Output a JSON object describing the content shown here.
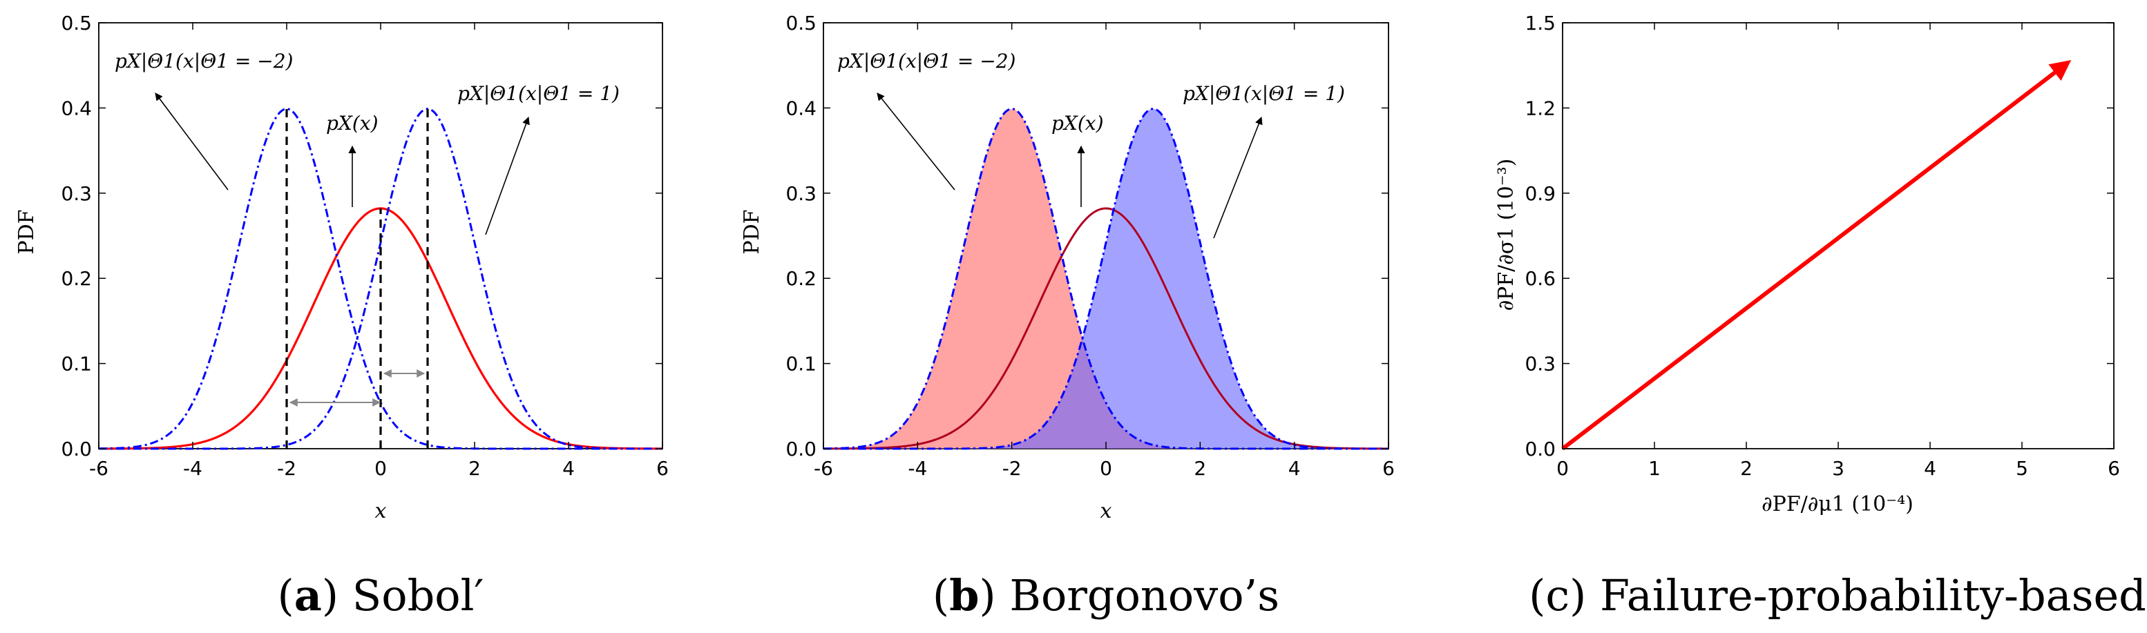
{
  "chart_data": [
    {
      "type": "line",
      "panel": "a",
      "caption_letter": "a",
      "caption_text": "Sobol′",
      "xlabel": "x",
      "ylabel": "PDF",
      "xlim": [
        -6,
        6
      ],
      "ylim": [
        0,
        0.5
      ],
      "xticks": [
        "-6",
        "-4",
        "-2",
        "0",
        "2",
        "4",
        "6"
      ],
      "yticks": [
        "0.0",
        "0.1",
        "0.2",
        "0.3",
        "0.4",
        "0.5"
      ],
      "series": [
        {
          "name": "p_X(x)",
          "mean": 0,
          "sd": 1.4142,
          "color": "#ff0000",
          "style": "solid"
        },
        {
          "name": "p_X|Θ1(x|Θ1 = −2)",
          "mean": -2,
          "sd": 1,
          "color": "#0000ff",
          "style": "dashdot"
        },
        {
          "name": "p_X|Θ1(x|Θ1 = 1)",
          "mean": 1,
          "sd": 1,
          "color": "#0000ff",
          "style": "dashdot"
        }
      ],
      "vlines": [
        -2,
        0,
        1
      ],
      "annotations": [
        {
          "text": "pX|Θ1(x|Θ1 = −2)",
          "position": "top-left"
        },
        {
          "text": "pX(x)",
          "position": "center"
        },
        {
          "text": "pX|Θ1(x|Θ1 = 1)",
          "position": "top-right"
        }
      ]
    },
    {
      "type": "area",
      "panel": "b",
      "caption_letter": "b",
      "caption_text": "Borgonovo’s",
      "xlabel": "x",
      "ylabel": "PDF",
      "xlim": [
        -6,
        6
      ],
      "ylim": [
        0,
        0.5
      ],
      "xticks": [
        "-6",
        "-4",
        "-2",
        "0",
        "2",
        "4",
        "6"
      ],
      "yticks": [
        "0.0",
        "0.1",
        "0.2",
        "0.3",
        "0.4",
        "0.5"
      ],
      "series": [
        {
          "name": "p_X(x)",
          "mean": 0,
          "sd": 1.4142,
          "color": "#ff0000",
          "style": "solid"
        },
        {
          "name": "p_X|Θ1(x|Θ1 = −2)",
          "mean": -2,
          "sd": 1,
          "color": "#0000ff",
          "style": "dashdot",
          "fill": "#ff6666"
        },
        {
          "name": "p_X|Θ1(x|Θ1 = 1)",
          "mean": 1,
          "sd": 1,
          "color": "#0000ff",
          "style": "dashdot",
          "fill": "#6666ff"
        }
      ],
      "annotations": [
        {
          "text": "pX|Θ1(x|Θ1 = −2)",
          "position": "top-left"
        },
        {
          "text": "pX(x)",
          "position": "center"
        },
        {
          "text": "pX|Θ1(x|Θ1 = 1)",
          "position": "top-right"
        }
      ]
    },
    {
      "type": "line",
      "panel": "c",
      "caption_letter": "c",
      "caption_text": "Failure-probability-based",
      "xlabel": "∂PF/∂μ1 (10⁻⁴)",
      "ylabel": "∂PF/∂σ1 (10⁻³)",
      "xlim": [
        0,
        6
      ],
      "ylim": [
        0,
        1.5
      ],
      "xticks": [
        "0",
        "1",
        "2",
        "3",
        "4",
        "5",
        "6"
      ],
      "yticks": [
        "0.0",
        "0.3",
        "0.6",
        "0.9",
        "1.2",
        "1.5"
      ],
      "series": [
        {
          "name": "sensitivity vector",
          "x": [
            0,
            5.5
          ],
          "y": [
            0,
            1.36
          ],
          "color": "#ff0000",
          "style": "arrow"
        }
      ]
    }
  ]
}
